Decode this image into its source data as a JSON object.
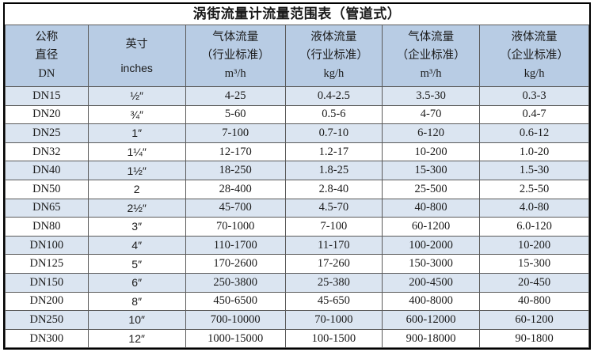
{
  "title": "涡街流量计流量范围表（管道式）",
  "colors": {
    "header_bg": "#b8cce4",
    "alt_row_bg": "#dbe5f1",
    "row_bg": "#ffffff",
    "inner_border": "#5a5a5a",
    "outer_border": "#000000",
    "text": "#1a1a1a"
  },
  "table": {
    "columns": [
      {
        "id": "dn",
        "lines": [
          "公称",
          "直径",
          "DN"
        ]
      },
      {
        "id": "inches",
        "lines": [
          "英寸",
          "inches"
        ]
      },
      {
        "id": "gas-industry",
        "lines": [
          "气体流量",
          "（行业标准）",
          "m³/h"
        ]
      },
      {
        "id": "liquid-industry",
        "lines": [
          "液体流量",
          "（行业标准）",
          "kg/h"
        ]
      },
      {
        "id": "gas-enterprise",
        "lines": [
          "气体流量",
          "（企业标准）",
          "m³/h"
        ]
      },
      {
        "id": "liquid-enterprise",
        "lines": [
          "液体流量",
          "（企业标准）",
          "kg/h"
        ]
      }
    ],
    "rows": [
      [
        "DN15",
        "½″",
        "4-25",
        "0.4-2.5",
        "3.5-30",
        "0.3-3"
      ],
      [
        "DN20",
        "¾″",
        "5-60",
        "0.5-6",
        "4-70",
        "0.4-7"
      ],
      [
        "DN25",
        "1″",
        "7-100",
        "0.7-10",
        "6-120",
        "0.6-12"
      ],
      [
        "DN32",
        "1¼″",
        "12-170",
        "1.2-17",
        "10-200",
        "1.0-20"
      ],
      [
        "DN40",
        "1½″",
        "18-250",
        "1.8-25",
        "15-300",
        "1.5-30"
      ],
      [
        "DN50",
        "2",
        "28-400",
        "2.8-40",
        "25-500",
        "2.5-50"
      ],
      [
        "DN65",
        "2½″",
        "45-700",
        "4.5-70",
        "40-800",
        "4.0-80"
      ],
      [
        "DN80",
        "3″",
        "70-1000",
        "7-100",
        "60-1200",
        "6.0-120"
      ],
      [
        "DN100",
        "4″",
        "110-1700",
        "11-170",
        "100-2000",
        "10-200"
      ],
      [
        "DN125",
        "5″",
        "170-2600",
        "17-260",
        "150-3000",
        "15-300"
      ],
      [
        "DN150",
        "6″",
        "250-3800",
        "25-380",
        "200-4500",
        "20-450"
      ],
      [
        "DN200",
        "8″",
        "450-6500",
        "45-650",
        "400-8000",
        "40-800"
      ],
      [
        "DN250",
        "10″",
        "700-10000",
        "70-1000",
        "600-12000",
        "60-1200"
      ],
      [
        "DN300",
        "12″",
        "1000-15000",
        "100-1500",
        "900-18000",
        "90-1800"
      ]
    ]
  }
}
